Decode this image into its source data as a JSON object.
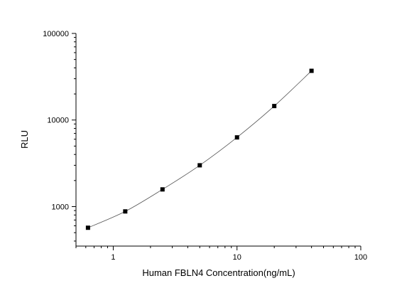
{
  "chart_data": {
    "type": "scatter",
    "title": "",
    "xlabel": "Human FBLN4 Concentration(ng/mL)",
    "ylabel": "RLU",
    "xscale": "log",
    "yscale": "log",
    "xlim": [
      0.5,
      100
    ],
    "ylim": [
      350,
      100000
    ],
    "x_ticks": [
      1,
      10,
      100
    ],
    "x_tick_labels": [
      "1",
      "10",
      "100"
    ],
    "y_ticks": [
      1000,
      10000,
      100000
    ],
    "y_tick_labels": [
      "1000",
      "10000",
      "100000"
    ],
    "grid": false,
    "legend": "none",
    "marker": "square",
    "fit_line": true,
    "colors": {
      "points": "#000000",
      "line": "#555555",
      "axes": "#000000"
    },
    "series": [
      {
        "x": [
          0.625,
          1.25,
          2.5,
          5,
          10,
          20,
          40
        ],
        "y": [
          570,
          880,
          1580,
          3000,
          6300,
          14500,
          37000
        ]
      }
    ]
  }
}
